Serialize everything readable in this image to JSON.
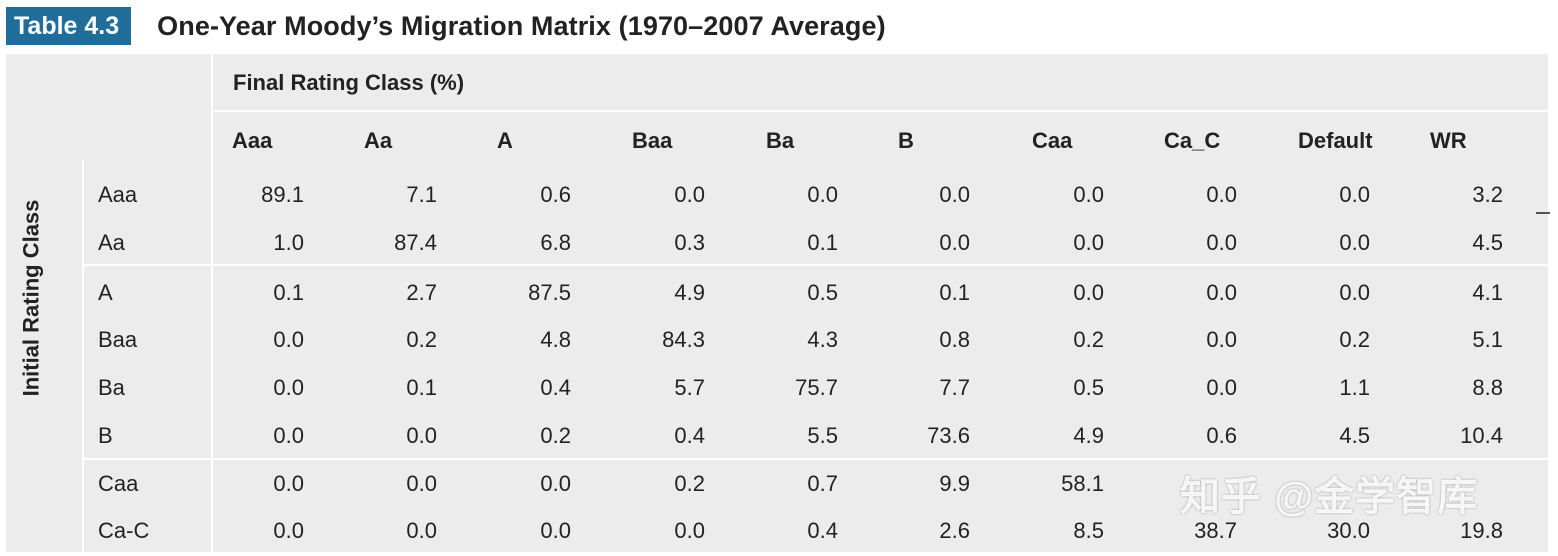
{
  "title_bar": {
    "tag": "Table 4.3",
    "title": "One-Year Moody’s Migration Matrix (1970–2007 Average)"
  },
  "axis_labels": {
    "initial": "Initial Rating Class",
    "final": "Final Rating Class (%)"
  },
  "columns": [
    "Aaa",
    "Aa",
    "A",
    "Baa",
    "Ba",
    "B",
    "Caa",
    "Ca_C",
    "Default",
    "WR"
  ],
  "rows": [
    {
      "label": "Aaa",
      "values": [
        "89.1",
        "7.1",
        "0.6",
        "0.0",
        "0.0",
        "0.0",
        "0.0",
        "0.0",
        "0.0",
        "3.2"
      ]
    },
    {
      "label": "Aa",
      "values": [
        "1.0",
        "87.4",
        "6.8",
        "0.3",
        "0.1",
        "0.0",
        "0.0",
        "0.0",
        "0.0",
        "4.5"
      ]
    },
    {
      "label": "A",
      "values": [
        "0.1",
        "2.7",
        "87.5",
        "4.9",
        "0.5",
        "0.1",
        "0.0",
        "0.0",
        "0.0",
        "4.1"
      ]
    },
    {
      "label": "Baa",
      "values": [
        "0.0",
        "0.2",
        "4.8",
        "84.3",
        "4.3",
        "0.8",
        "0.2",
        "0.0",
        "0.2",
        "5.1"
      ]
    },
    {
      "label": "Ba",
      "values": [
        "0.0",
        "0.1",
        "0.4",
        "5.7",
        "75.7",
        "7.7",
        "0.5",
        "0.0",
        "1.1",
        "8.8"
      ]
    },
    {
      "label": "B",
      "values": [
        "0.0",
        "0.0",
        "0.2",
        "0.4",
        "5.5",
        "73.6",
        "4.9",
        "0.6",
        "4.5",
        "10.4"
      ]
    },
    {
      "label": "Caa",
      "values": [
        "0.0",
        "0.0",
        "0.0",
        "0.2",
        "0.7",
        "9.9",
        "58.1",
        "",
        "",
        ""
      ]
    },
    {
      "label": "Ca-C",
      "values": [
        "0.0",
        "0.0",
        "0.0",
        "0.0",
        "0.4",
        "2.6",
        "8.5",
        "38.7",
        "30.0",
        "19.8"
      ]
    }
  ],
  "watermark": "知乎 @金学智库"
}
